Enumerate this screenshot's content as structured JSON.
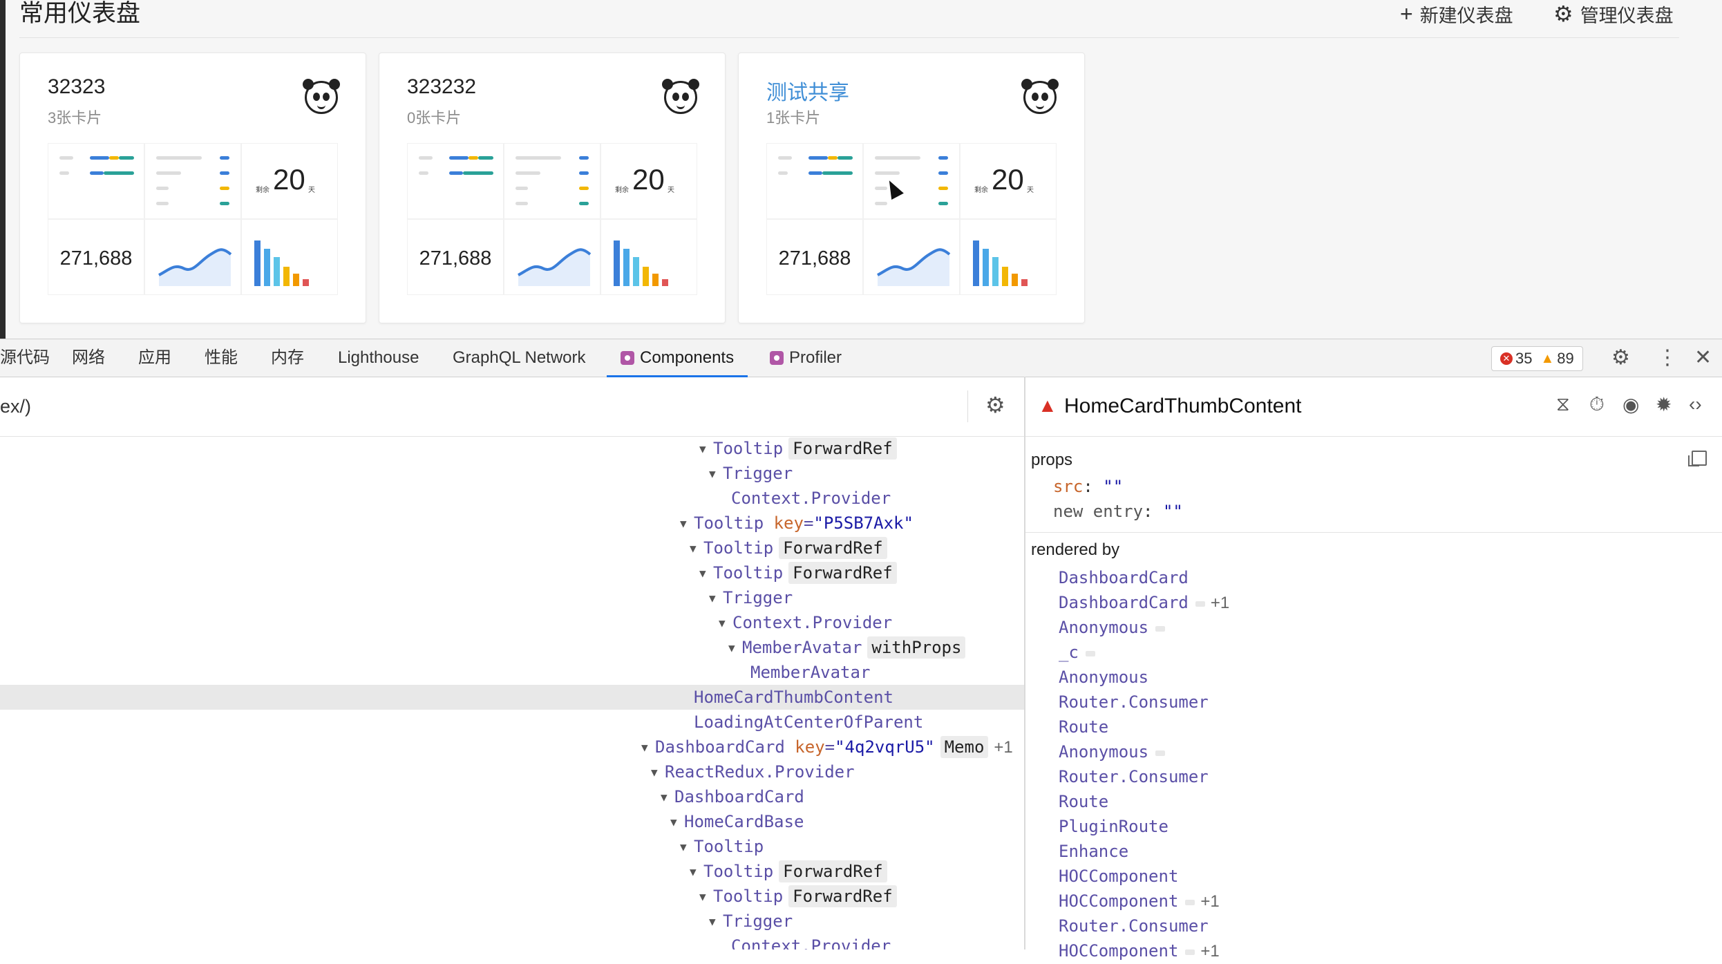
{
  "app": {
    "title": "常用仪表盘",
    "new_dashboard": "新建仪表盘",
    "manage_dashboard": "管理仪表盘",
    "cards": [
      {
        "title": "32323",
        "subtitle": "3张卡片",
        "num": "271,688",
        "days_num": "20",
        "days_prefix": "剩余",
        "days_suffix": "天"
      },
      {
        "title": "323232",
        "subtitle": "0张卡片",
        "num": "271,688",
        "days_num": "20",
        "days_prefix": "剩余",
        "days_suffix": "天"
      },
      {
        "title": "测试共享",
        "subtitle": "1张卡片",
        "num": "271,688",
        "days_num": "20",
        "days_prefix": "剩余",
        "days_suffix": "天"
      }
    ]
  },
  "devtools": {
    "tabs": [
      "源代码",
      "网络",
      "应用",
      "性能",
      "内存",
      "Lighthouse",
      "GraphQL Network",
      "Components",
      "Profiler"
    ],
    "errors": "35",
    "warnings": "89",
    "search_text": "ex/)",
    "tree": [
      {
        "name": "Tooltip",
        "badge": "ForwardRef"
      },
      {
        "name": "Trigger"
      },
      {
        "name": "Context.Provider"
      },
      {
        "name": "Tooltip",
        "key": "key",
        "eq": "=",
        "val": "\"P5SB7Axk\""
      },
      {
        "name": "Tooltip",
        "badge": "ForwardRef"
      },
      {
        "name": "Tooltip",
        "badge": "ForwardRef"
      },
      {
        "name": "Trigger"
      },
      {
        "name": "Context.Provider"
      },
      {
        "name": "MemberAvatar",
        "badge": "withProps"
      },
      {
        "name": "MemberAvatar"
      },
      {
        "name": "HomeCardThumbContent"
      },
      {
        "name": "LoadingAtCenterOfParent"
      },
      {
        "name": "DashboardCard",
        "key": "key",
        "eq": "=",
        "val": "\"4q2vqrU5\"",
        "badge": "Memo",
        "extra": "+1"
      },
      {
        "name": "ReactRedux.Provider"
      },
      {
        "name": "DashboardCard"
      },
      {
        "name": "HomeCardBase"
      },
      {
        "name": "Tooltip"
      },
      {
        "name": "Tooltip",
        "badge": "ForwardRef"
      },
      {
        "name": "Tooltip",
        "badge": "ForwardRef"
      },
      {
        "name": "Trigger"
      },
      {
        "name": "Context.Provider"
      }
    ],
    "selected": {
      "name": "HomeCardThumbContent",
      "props_label": "props",
      "props": [
        {
          "key": "src",
          "val": "\"\""
        },
        {
          "key": "new entry",
          "val": "\"\""
        }
      ],
      "rendered_by_label": "rendered by",
      "rendered_by": [
        {
          "name": "DashboardCard"
        },
        {
          "name": "DashboardCard",
          "extra": "+1"
        },
        {
          "name": "Anonymous"
        },
        {
          "name": "_c"
        },
        {
          "name": "Anonymous"
        },
        {
          "name": "Router.Consumer"
        },
        {
          "name": "Route"
        },
        {
          "name": "Anonymous"
        },
        {
          "name": "Router.Consumer"
        },
        {
          "name": "Route"
        },
        {
          "name": "PluginRoute"
        },
        {
          "name": "Enhance"
        },
        {
          "name": "HOCComponent"
        },
        {
          "name": "HOCComponent",
          "extra": "+1"
        },
        {
          "name": "Router.Consumer"
        },
        {
          "name": "HOCComponent",
          "extra": "+1"
        }
      ]
    }
  }
}
